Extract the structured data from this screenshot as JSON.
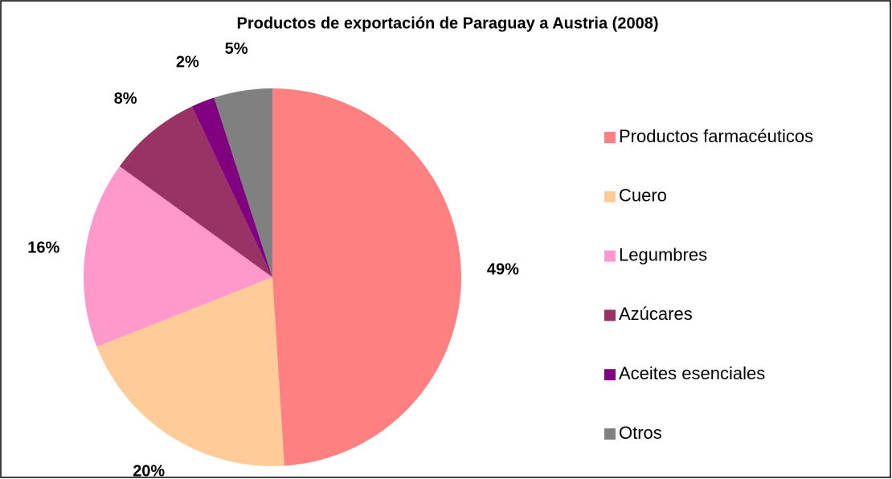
{
  "chart_data": {
    "type": "pie",
    "title": "Productos de exportación de Paraguay a Austria (2008)",
    "categories": [
      "Productos farmacéuticos",
      "Cuero",
      "Legumbres",
      "Azúcares",
      "Aceites esenciales",
      "Otros"
    ],
    "values": [
      49,
      20,
      16,
      8,
      2,
      5
    ],
    "value_labels": [
      "49%",
      "20%",
      "16%",
      "8%",
      "2%",
      "5%"
    ],
    "colors": [
      "#ff8080",
      "#ffcc99",
      "#ff99cc",
      "#993366",
      "#800080",
      "#808080"
    ],
    "legend": "right"
  }
}
